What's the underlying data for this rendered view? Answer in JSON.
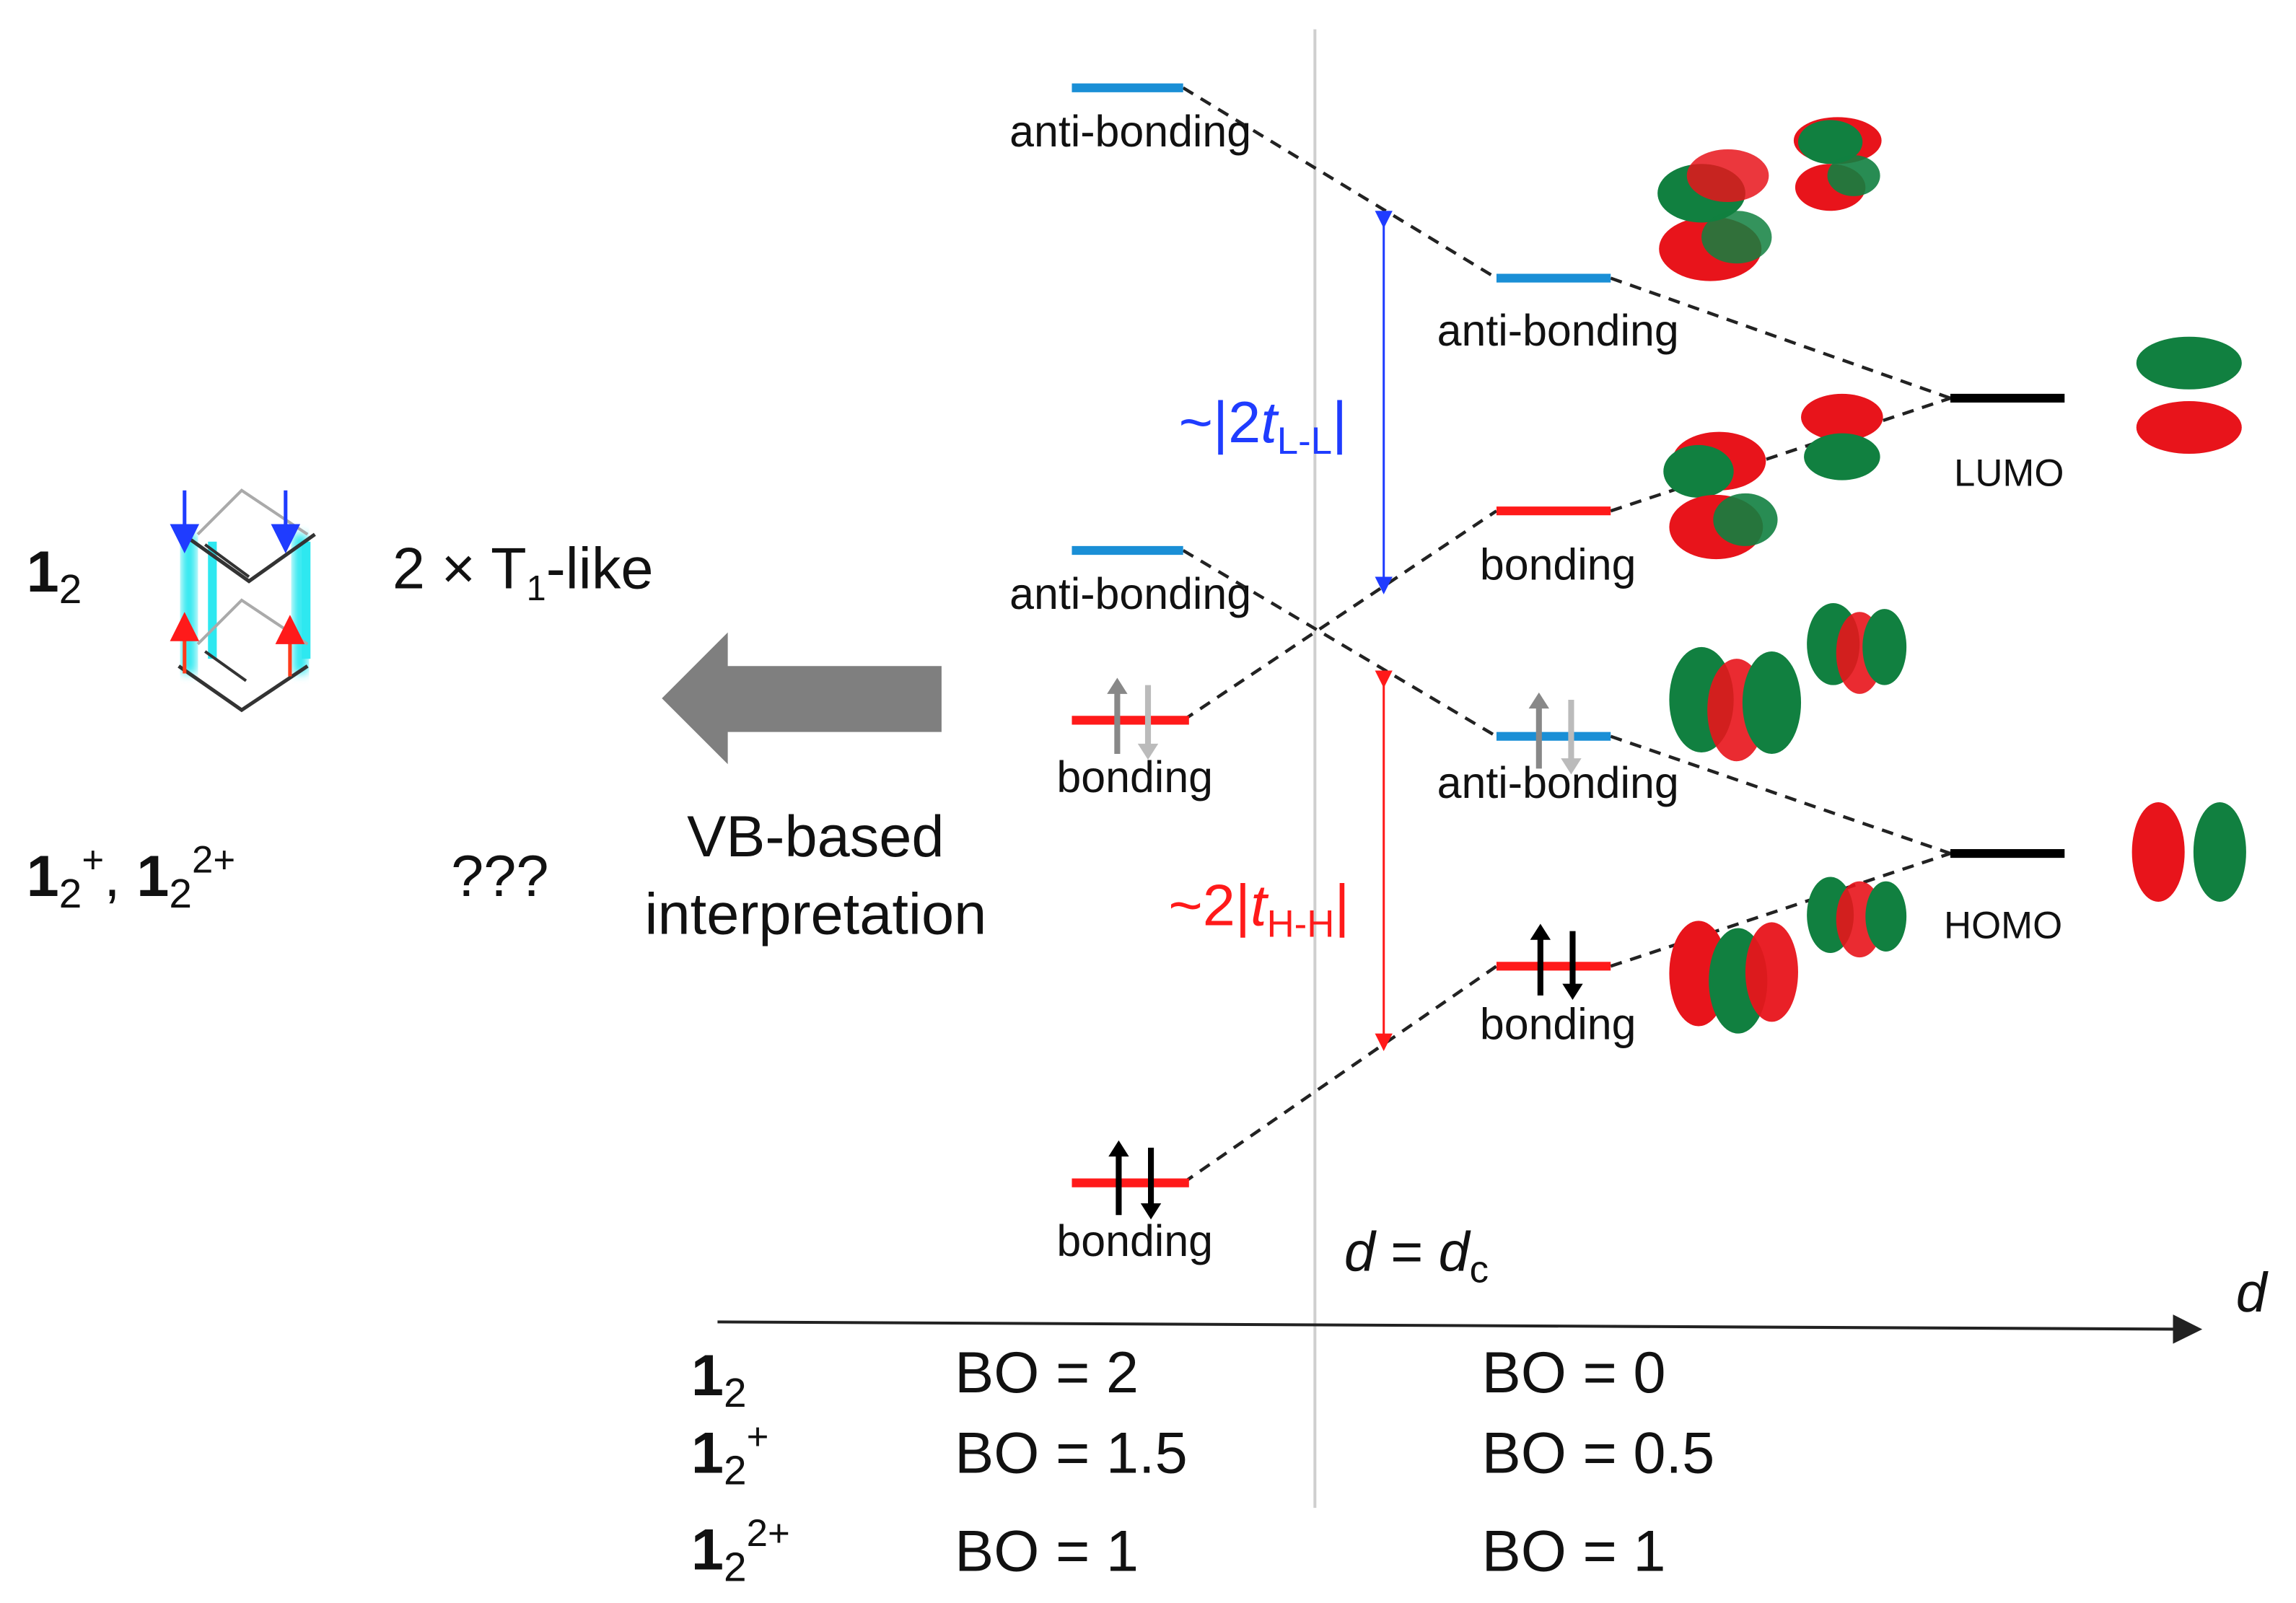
{
  "left_panel": {
    "species_1": {
      "main": "1",
      "sub": "2"
    },
    "species_1_description": {
      "main": "2 × T",
      "sub": "1",
      "tail": "-like"
    },
    "species_2": {
      "a_main": "1",
      "a_sub": "2",
      "a_sup": "+",
      "sep": ", ",
      "b_main": "1",
      "b_sub": "2",
      "b_sup": "2+"
    },
    "species_2_description": "???",
    "arrow_caption_line1": "VB-based",
    "arrow_caption_line2": "interpretation"
  },
  "diagram": {
    "left_column": [
      {
        "label": "anti-bonding",
        "color": "#1a8fd6"
      },
      {
        "label": "anti-bonding",
        "color": "#1a8fd6"
      },
      {
        "label": "bonding",
        "color": "#ff1a1a",
        "electrons": "gray"
      },
      {
        "label": "bonding",
        "color": "#ff1a1a",
        "electrons": "black"
      }
    ],
    "middle_column": [
      {
        "label": "anti-bonding",
        "color": "#1a8fd6"
      },
      {
        "label": "bonding",
        "color": "#ff1a1a"
      },
      {
        "label": "anti-bonding",
        "color": "#1a8fd6",
        "electrons": "gray"
      },
      {
        "label": "bonding",
        "color": "#ff1a1a",
        "electrons": "black"
      }
    ],
    "right_column": [
      {
        "label": "LUMO",
        "color": "#000000"
      },
      {
        "label": "HOMO",
        "color": "#000000"
      }
    ],
    "gap_lumo": {
      "prefix": "~|2",
      "t": "t",
      "sub": "L-L",
      "suffix": "|",
      "color": "#1f3cff"
    },
    "gap_homo": {
      "prefix": "~2|",
      "t": "t",
      "sub": "H-H",
      "suffix": "|",
      "color": "#ff1a1a"
    },
    "critical_distance": {
      "d": "d",
      "eq": " = ",
      "dc": "d",
      "sub": "c"
    },
    "axis_label": "d",
    "orbital_colors": {
      "positive": "#e8141b",
      "negative": "#118040"
    }
  },
  "bond_order_table": [
    {
      "main": "1",
      "sub": "2",
      "sup": "",
      "left": "BO = 2",
      "right": "BO = 0"
    },
    {
      "main": "1",
      "sub": "2",
      "sup": "+",
      "left": "BO = 1.5",
      "right": "BO = 0.5"
    },
    {
      "main": "1",
      "sub": "2",
      "sup": "2+",
      "left": "BO = 1",
      "right": "BO = 1"
    }
  ]
}
